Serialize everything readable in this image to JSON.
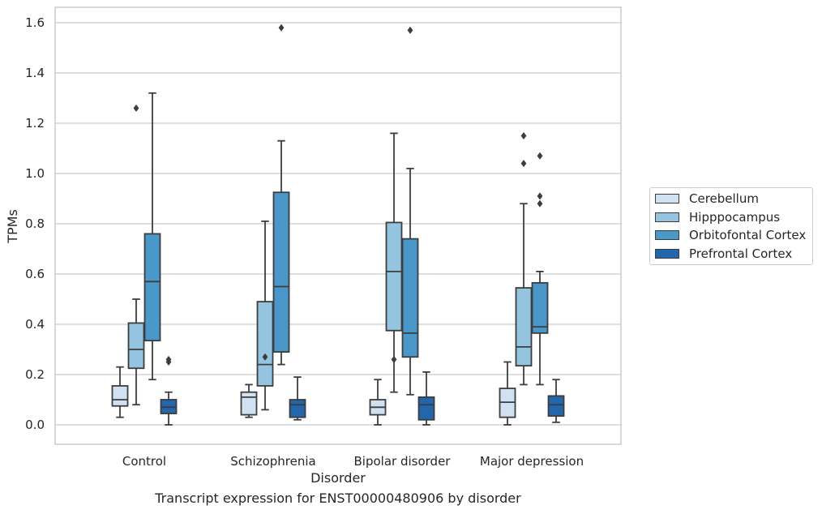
{
  "chart_data": {
    "type": "boxplot",
    "xlabel": "Disorder",
    "ylabel": "TPMs",
    "ylim": [
      -0.08,
      1.66
    ],
    "yticks": [
      "0.0",
      "0.2",
      "0.4",
      "0.6",
      "0.8",
      "1.0",
      "1.2",
      "1.4",
      "1.6"
    ],
    "ytick_values": [
      0.0,
      0.2,
      0.4,
      0.6,
      0.8,
      1.0,
      1.2,
      1.4,
      1.6
    ],
    "grid": "horizontal",
    "legend_position": "right",
    "categories": [
      "Control",
      "Schizophrenia",
      "Bipolar disorder",
      "Major depression"
    ],
    "series": [
      {
        "name": "Cerebellum",
        "color": "#d0e1f2",
        "boxes": [
          {
            "whislo": 0.03,
            "q1": 0.075,
            "med": 0.1,
            "q3": 0.155,
            "whishi": 0.23,
            "fliers": []
          },
          {
            "whislo": 0.03,
            "q1": 0.04,
            "med": 0.11,
            "q3": 0.13,
            "whishi": 0.16,
            "fliers": []
          },
          {
            "whislo": 0.0,
            "q1": 0.04,
            "med": 0.07,
            "q3": 0.1,
            "whishi": 0.18,
            "fliers": []
          },
          {
            "whislo": 0.0,
            "q1": 0.03,
            "med": 0.09,
            "q3": 0.145,
            "whishi": 0.25,
            "fliers": []
          }
        ]
      },
      {
        "name": "Hipppocampus",
        "color": "#94c4df",
        "boxes": [
          {
            "whislo": 0.08,
            "q1": 0.225,
            "med": 0.3,
            "q3": 0.405,
            "whishi": 0.5,
            "fliers": [
              1.26
            ]
          },
          {
            "whislo": 0.06,
            "q1": 0.155,
            "med": 0.24,
            "q3": 0.49,
            "whishi": 0.81,
            "fliers": [
              0.27
            ]
          },
          {
            "whislo": 0.13,
            "q1": 0.375,
            "med": 0.61,
            "q3": 0.805,
            "whishi": 1.16,
            "fliers": [
              0.26
            ]
          },
          {
            "whislo": 0.16,
            "q1": 0.235,
            "med": 0.31,
            "q3": 0.545,
            "whishi": 0.88,
            "fliers": [
              1.04,
              1.15
            ]
          }
        ]
      },
      {
        "name": "Orbitofontal Cortex",
        "color": "#4a98c9",
        "boxes": [
          {
            "whislo": 0.18,
            "q1": 0.335,
            "med": 0.57,
            "q3": 0.76,
            "whishi": 1.32,
            "fliers": []
          },
          {
            "whislo": 0.24,
            "q1": 0.29,
            "med": 0.55,
            "q3": 0.925,
            "whishi": 1.13,
            "fliers": [
              1.58
            ]
          },
          {
            "whislo": 0.12,
            "q1": 0.27,
            "med": 0.365,
            "q3": 0.74,
            "whishi": 1.02,
            "fliers": [
              1.57
            ]
          },
          {
            "whislo": 0.16,
            "q1": 0.365,
            "med": 0.39,
            "q3": 0.565,
            "whishi": 0.61,
            "fliers": [
              0.88,
              0.91,
              1.07
            ]
          }
        ]
      },
      {
        "name": "Prefrontal Cortex",
        "color": "#2266ab",
        "boxes": [
          {
            "whislo": 0.0,
            "q1": 0.045,
            "med": 0.07,
            "q3": 0.1,
            "whishi": 0.13,
            "fliers": [
              0.25,
              0.26
            ]
          },
          {
            "whislo": 0.02,
            "q1": 0.03,
            "med": 0.08,
            "q3": 0.1,
            "whishi": 0.19,
            "fliers": []
          },
          {
            "whislo": 0.0,
            "q1": 0.02,
            "med": 0.08,
            "q3": 0.11,
            "whishi": 0.21,
            "fliers": []
          },
          {
            "whislo": 0.01,
            "q1": 0.035,
            "med": 0.08,
            "q3": 0.115,
            "whishi": 0.18,
            "fliers": []
          }
        ]
      }
    ]
  },
  "caption": "Transcript expression for ENST00000480906 by disorder",
  "colors": {
    "grid": "#cccccc",
    "frame": "#cccccc",
    "stroke": "#3d3d3d"
  }
}
